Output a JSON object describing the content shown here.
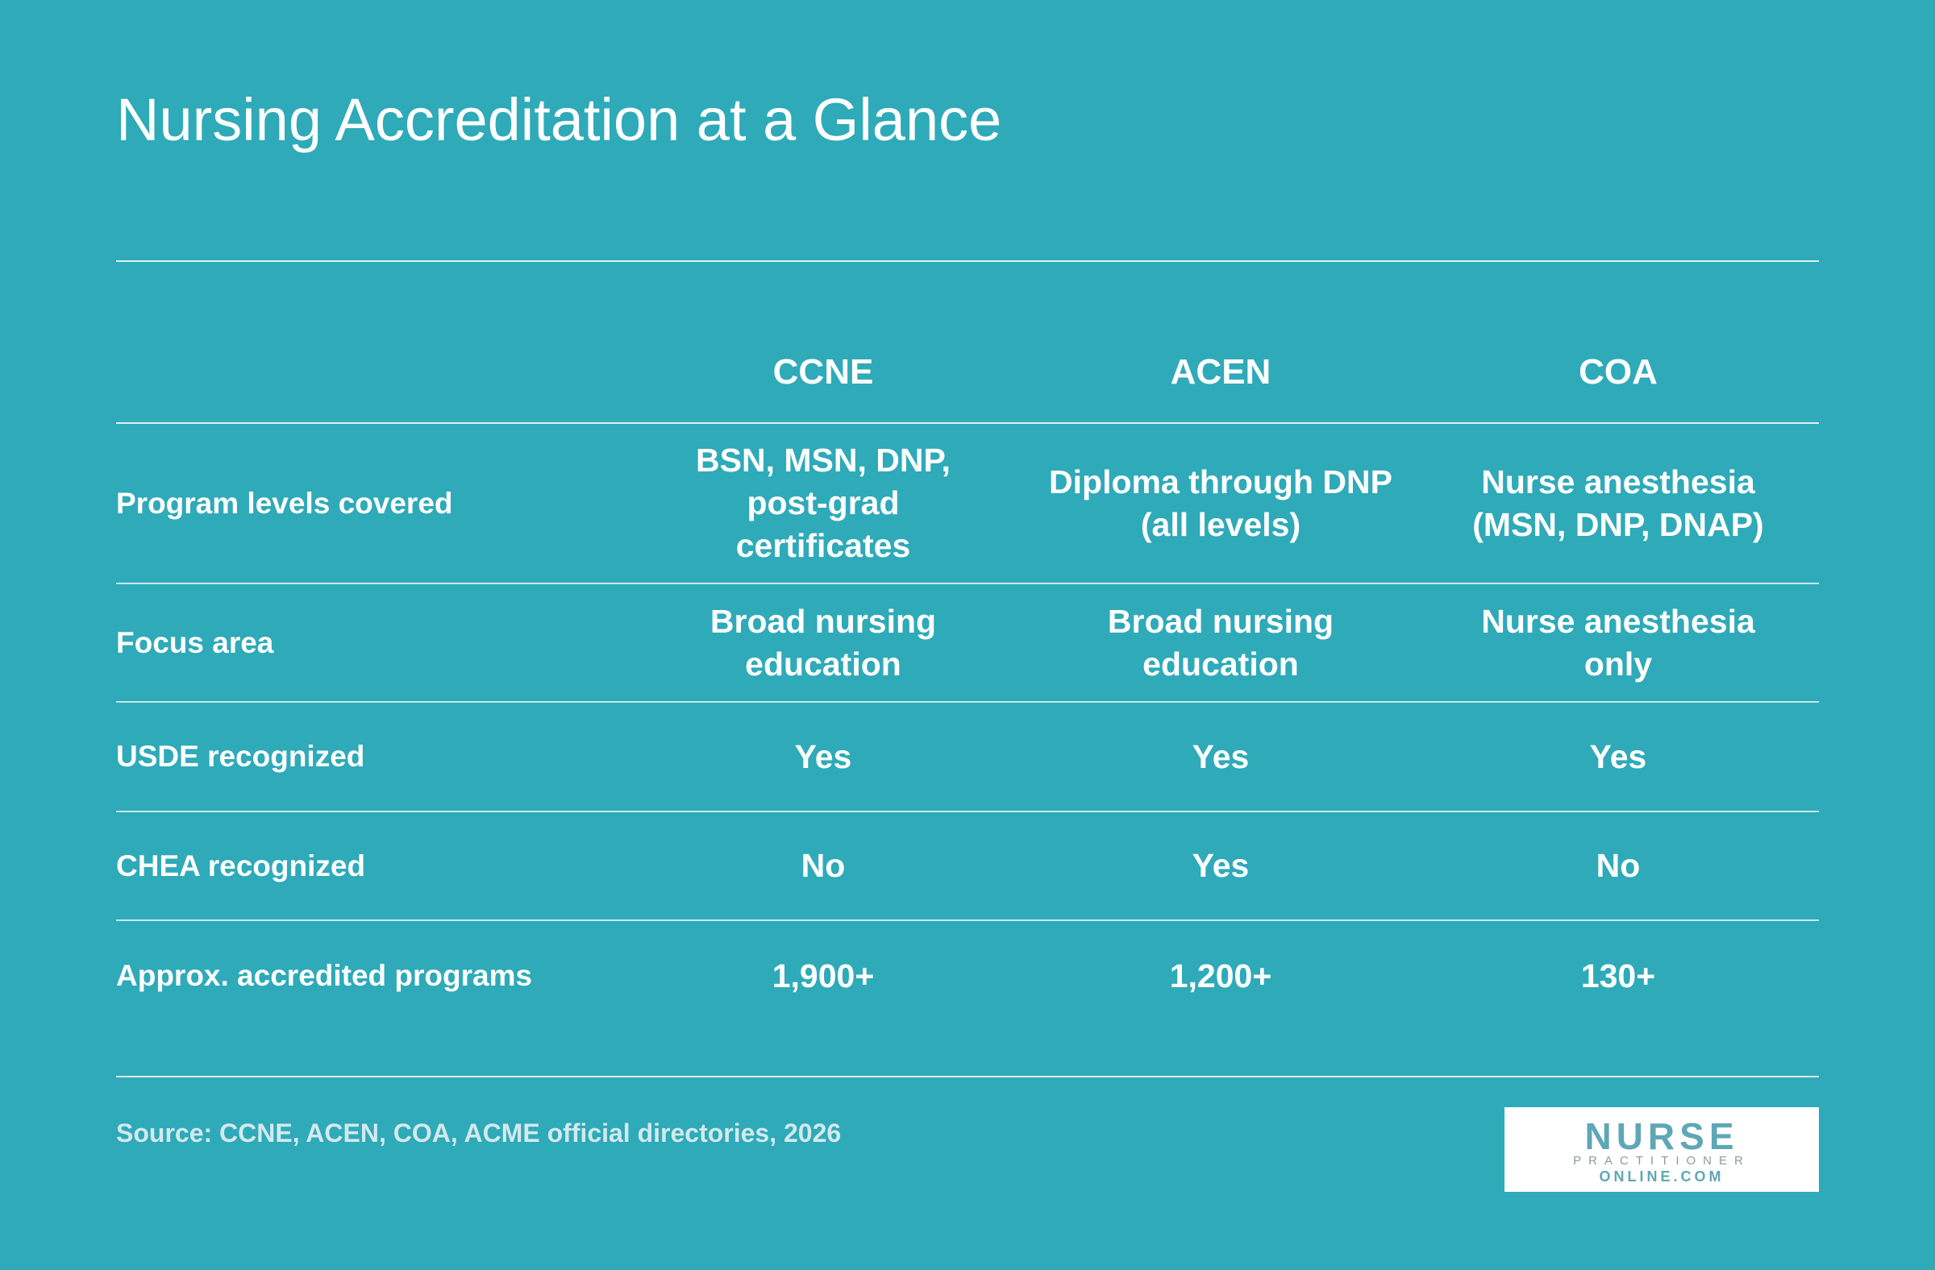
{
  "header": {
    "title": "Nursing Accreditation at a Glance"
  },
  "table": {
    "columns": [
      "CCNE",
      "ACEN",
      "COA"
    ],
    "rows": [
      [
        "Program levels covered",
        "BSN, MSN, DNP, post-grad certificates",
        "Diploma through DNP (all levels)",
        "Nurse anesthesia (MSN, DNP, DNAP)"
      ],
      [
        "Focus area",
        "Broad nursing education",
        "Broad nursing education",
        "Nurse anesthesia only"
      ],
      [
        "USDE recognized",
        "Yes",
        "Yes",
        "Yes"
      ],
      [
        "CHEA recognized",
        "No",
        "Yes",
        "No"
      ],
      [
        "Approx. accredited programs",
        "1,900+",
        "1,200+",
        "130+"
      ]
    ]
  },
  "footer": {
    "source": "Source: CCNE, ACEN, COA, ACME official directories, 2026"
  },
  "logo": {
    "line1": "NURSE",
    "line2": "PRACTITIONER",
    "line3": "ONLINE.COM"
  }
}
